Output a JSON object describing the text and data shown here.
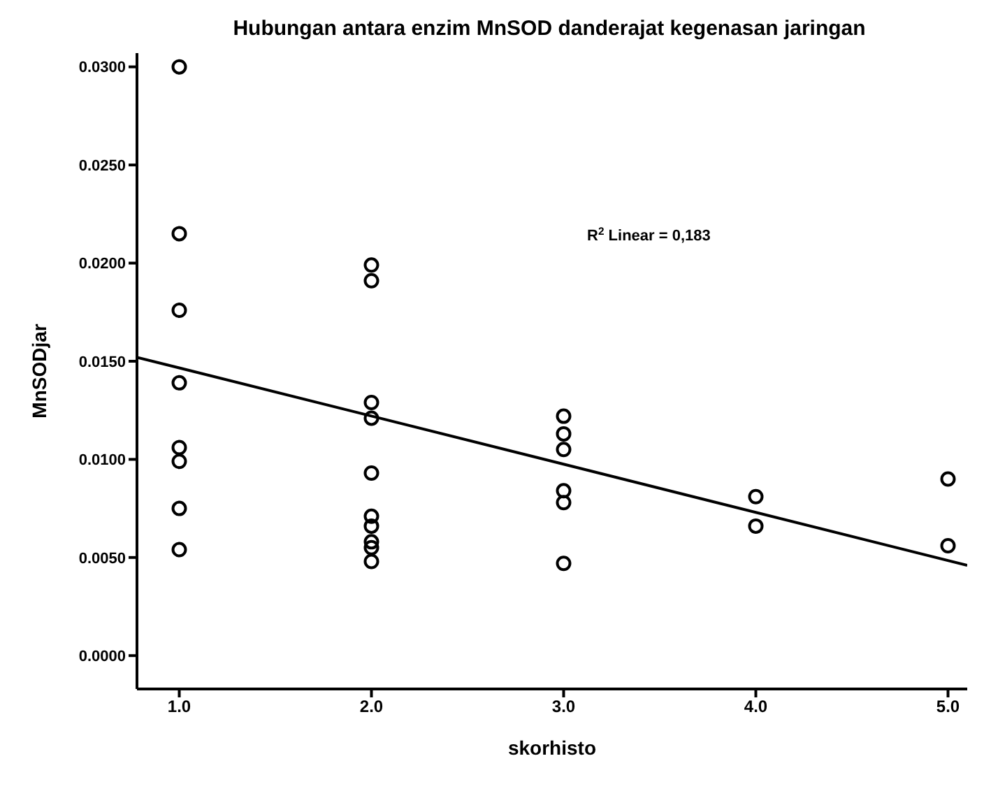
{
  "chart_data": {
    "type": "scatter",
    "title": "Hubungan antara enzim MnSOD danderajat kegenasan jaringan",
    "xlabel": "skorhisto",
    "ylabel": "MnSODjar",
    "series": [
      {
        "color": "#000000",
        "x": [
          1,
          1,
          1,
          1,
          1,
          1,
          1,
          1,
          2,
          2,
          2,
          2,
          2,
          2,
          2,
          2,
          2,
          2,
          3,
          3,
          3,
          3,
          3,
          3,
          4,
          4,
          5,
          5
        ],
        "values": [
          0.03,
          0.0215,
          0.0176,
          0.0139,
          0.0106,
          0.0099,
          0.0075,
          0.0054,
          0.0199,
          0.0191,
          0.0129,
          0.0121,
          0.0093,
          0.0071,
          0.0066,
          0.0058,
          0.0055,
          0.0048,
          0.0122,
          0.0113,
          0.0105,
          0.0084,
          0.0078,
          0.0047,
          0.0081,
          0.0066,
          0.009,
          0.0056
        ]
      },
      {
        "type": "line",
        "marker": "none",
        "color": "#000000",
        "x": [
          0.78,
          5.1
        ],
        "values": [
          0.0152,
          0.0046
        ]
      }
    ],
    "annotations": [
      "R$^{2}$ Linear = 0,183"
    ],
    "xlim": [
      0.78,
      5.1
    ],
    "xticks": [
      {
        "value": 1,
        "label": "1.0"
      },
      {
        "value": 2,
        "label": "2.0"
      },
      {
        "value": 3,
        "label": "3.0"
      },
      {
        "value": 4,
        "label": "4.0"
      },
      {
        "value": 5,
        "label": "5.0"
      }
    ],
    "ylim": [
      -0.0017,
      0.0307
    ],
    "yticks": [
      {
        "value": 0,
        "label": "0.0000"
      },
      {
        "value": 0.005,
        "label": "0.0050"
      },
      {
        "value": 0.01,
        "label": "0.0100"
      },
      {
        "value": 0.015,
        "label": "0.0150"
      },
      {
        "value": 0.02,
        "label": "0.0200"
      },
      {
        "value": 0.025,
        "label": "0.0250"
      },
      {
        "value": 0.03,
        "label": "0.0300"
      }
    ],
    "marker": "circle",
    "grid": false
  }
}
